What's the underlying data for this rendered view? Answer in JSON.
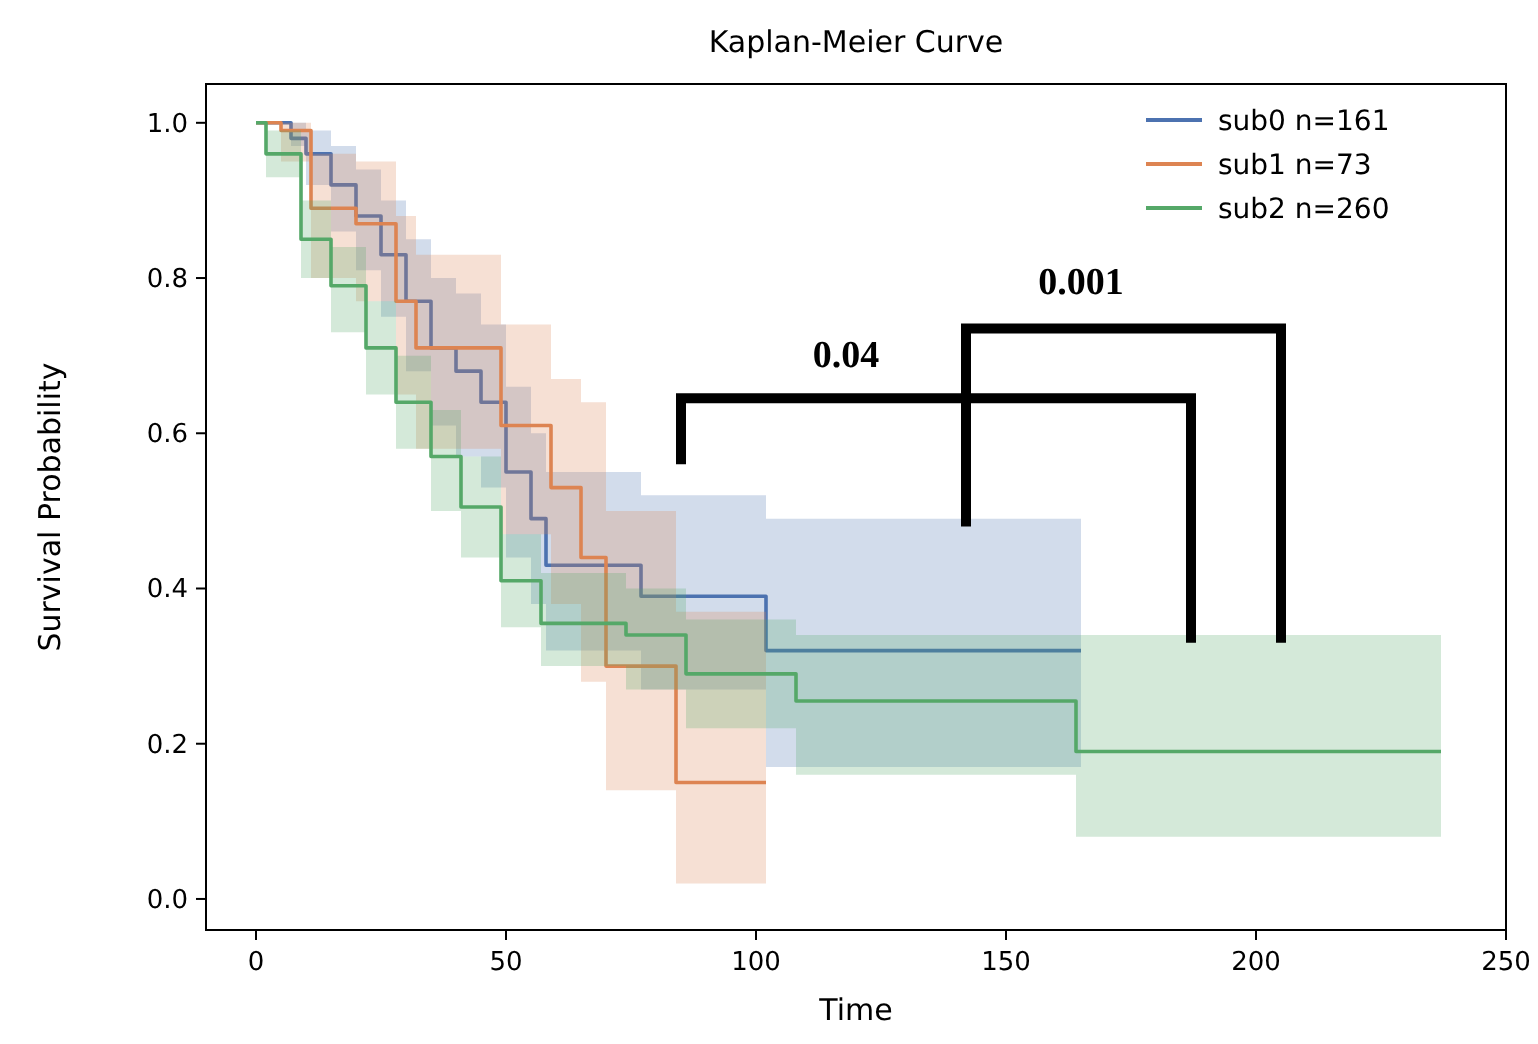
{
  "chart_data": {
    "type": "step",
    "title": "Kaplan-Meier Curve",
    "xlabel": "Time",
    "ylabel": "Survival Probability",
    "xlim": [
      -10,
      250
    ],
    "xticks": [
      0,
      50,
      100,
      150,
      200,
      250
    ],
    "ylim": [
      -0.04,
      1.05
    ],
    "yticks": [
      {
        "value": 0,
        "label": "0.0"
      },
      {
        "value": 0.2,
        "label": "0.2"
      },
      {
        "value": 0.4,
        "label": "0.4"
      },
      {
        "value": 0.6,
        "label": "0.6"
      },
      {
        "value": 0.8,
        "label": "0.8"
      },
      {
        "value": 1,
        "label": "1.0"
      }
    ],
    "grid": false,
    "legend": "top right",
    "line_style": "solid",
    "marker": "none",
    "annotations": [
      "0.04",
      "0.001"
    ],
    "series": [
      {
        "name": "sub0 n=161",
        "color": "#4c72b0",
        "x": [
          0,
          7,
          10,
          15,
          20,
          25,
          30,
          35,
          40,
          45,
          50,
          55,
          58,
          77,
          102,
          165
        ],
        "values": [
          1,
          0.98,
          0.96,
          0.92,
          0.88,
          0.83,
          0.77,
          0.71,
          0.68,
          0.64,
          0.55,
          0.49,
          0.43,
          0.39,
          0.32,
          0.32
        ],
        "lower": [
          1,
          0.97,
          0.92,
          0.86,
          0.81,
          0.75,
          0.68,
          0.61,
          0.57,
          0.53,
          0.44,
          0.38,
          0.32,
          0.27,
          0.17,
          0.17
        ],
        "upper": [
          1,
          1,
          0.99,
          0.97,
          0.94,
          0.9,
          0.85,
          0.8,
          0.78,
          0.74,
          0.66,
          0.6,
          0.55,
          0.52,
          0.49,
          0.49
        ]
      },
      {
        "name": "sub1 n=73",
        "color": "#dd8452",
        "x": [
          0,
          5,
          11,
          20,
          28,
          32,
          49,
          59,
          65,
          70,
          84,
          102
        ],
        "values": [
          1,
          0.99,
          0.89,
          0.87,
          0.77,
          0.71,
          0.61,
          0.53,
          0.44,
          0.3,
          0.15,
          0.15
        ],
        "lower": [
          1,
          0.95,
          0.8,
          0.77,
          0.65,
          0.58,
          0.47,
          0.38,
          0.28,
          0.14,
          0.02,
          0.02
        ],
        "upper": [
          1,
          1,
          0.96,
          0.95,
          0.88,
          0.83,
          0.74,
          0.67,
          0.64,
          0.5,
          0.37,
          0.37
        ]
      },
      {
        "name": "sub2 n=260",
        "color": "#55a868",
        "x": [
          0,
          2,
          9,
          15,
          22,
          28,
          35,
          41,
          49,
          57,
          74,
          86,
          108,
          164,
          237
        ],
        "values": [
          1,
          0.96,
          0.85,
          0.79,
          0.71,
          0.64,
          0.57,
          0.505,
          0.41,
          0.355,
          0.34,
          0.29,
          0.255,
          0.19,
          0.19
        ],
        "lower": [
          1,
          0.93,
          0.8,
          0.73,
          0.65,
          0.58,
          0.5,
          0.44,
          0.35,
          0.3,
          0.27,
          0.22,
          0.16,
          0.08,
          0.08
        ],
        "upper": [
          1,
          0.99,
          0.9,
          0.84,
          0.77,
          0.7,
          0.63,
          0.57,
          0.47,
          0.42,
          0.4,
          0.36,
          0.34,
          0.34,
          0.34
        ]
      }
    ]
  }
}
